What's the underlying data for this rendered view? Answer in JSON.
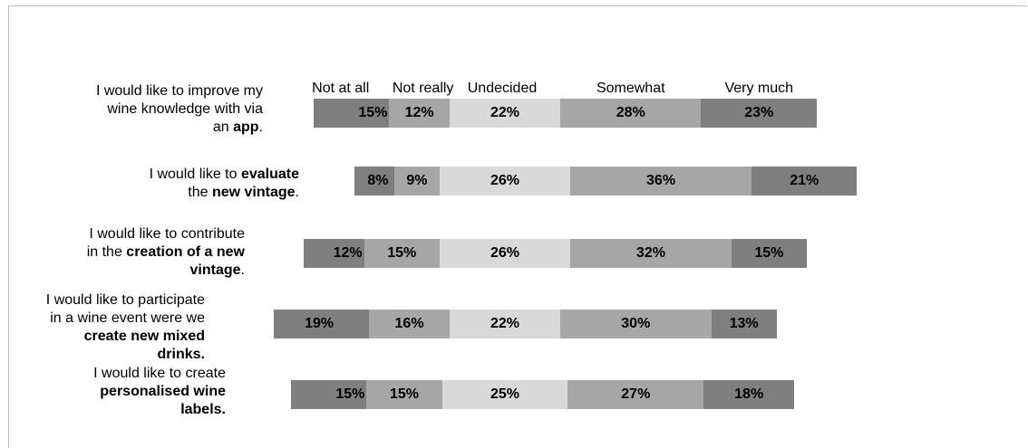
{
  "chart_data": {
    "type": "bar",
    "orientation": "horizontal-stacked-diverging",
    "legend_placement": "top",
    "colors": [
      "#7f7f7f",
      "#a6a6a6",
      "#d9d9d9",
      "#a6a6a6",
      "#7f7f7f"
    ],
    "categories_legend": [
      "Not at all",
      "Not really",
      "Undecided",
      "Somewhat",
      "Very much"
    ],
    "rows": [
      {
        "label_parts": [
          {
            "t": "I would like to improve my",
            "b": false,
            "br": true
          },
          {
            "t": "wine knowledge with via",
            "b": false,
            "br": true
          },
          {
            "t": "an ",
            "b": false
          },
          {
            "t": "app",
            "b": true
          },
          {
            "t": ".",
            "b": false
          }
        ],
        "values": [
          15,
          12,
          22,
          28,
          23
        ],
        "value_labels": [
          "15%",
          "12%",
          "22%",
          "28%",
          "23%"
        ]
      },
      {
        "label_parts": [
          {
            "t": "I would like to ",
            "b": false
          },
          {
            "t": "evaluate",
            "b": true,
            "br": true
          },
          {
            "t": "the ",
            "b": false
          },
          {
            "t": "new vintage",
            "b": true
          },
          {
            "t": ".",
            "b": false
          }
        ],
        "values": [
          8,
          9,
          26,
          36,
          21
        ],
        "value_labels": [
          "8%",
          "9%",
          "26%",
          "36%",
          "21%"
        ]
      },
      {
        "label_parts": [
          {
            "t": "I would like to contribute",
            "b": false,
            "br": true
          },
          {
            "t": "in the ",
            "b": false
          },
          {
            "t": "creation of a new",
            "b": true,
            "br": true
          },
          {
            "t": "vintage",
            "b": true
          },
          {
            "t": ".",
            "b": false
          }
        ],
        "values": [
          12,
          15,
          26,
          32,
          15
        ],
        "value_labels": [
          "12%",
          "15%",
          "26%",
          "32%",
          "15%"
        ]
      },
      {
        "label_parts": [
          {
            "t": "I would like to participate",
            "b": false,
            "br": true
          },
          {
            "t": "in a wine event were we",
            "b": false,
            "br": true
          },
          {
            "t": "create new mixed",
            "b": true,
            "br": true
          },
          {
            "t": "drinks.",
            "b": true
          }
        ],
        "values": [
          19,
          16,
          22,
          30,
          13
        ],
        "value_labels": [
          "19%",
          "16%",
          "22%",
          "30%",
          "13%"
        ]
      },
      {
        "label_parts": [
          {
            "t": "I would like to create",
            "b": false,
            "br": true
          },
          {
            "t": "personalised wine",
            "b": true,
            "br": true
          },
          {
            "t": "labels.",
            "b": true
          }
        ],
        "values": [
          15,
          15,
          25,
          27,
          18
        ],
        "value_labels": [
          "15%",
          "15%",
          "25%",
          "27%",
          "18%"
        ]
      }
    ]
  }
}
